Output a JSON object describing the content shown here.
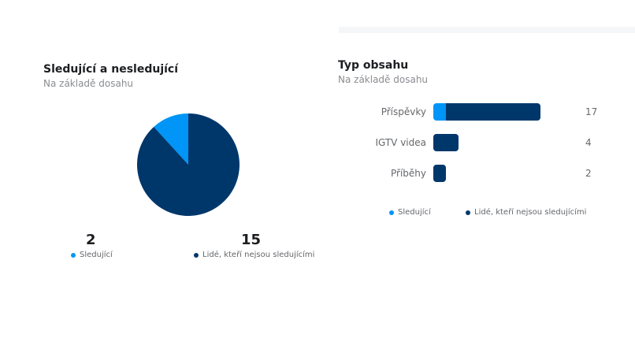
{
  "colors": {
    "followers": "#0095f6",
    "non_followers": "#00376b"
  },
  "left": {
    "title": "Sledující a nesledující",
    "subtitle": "Na základě dosahu",
    "followers_count": "2",
    "non_followers_count": "15",
    "legend_followers": "Sledující",
    "legend_non_followers": "Lidé, kteří nejsou sledujícími"
  },
  "right": {
    "title": "Typ obsahu",
    "subtitle": "Na základě dosahu",
    "legend_followers": "Sledující",
    "legend_non_followers": "Lidé, kteří nejsou sledujícími"
  },
  "chart_data": [
    {
      "type": "pie",
      "categories": [
        "Sledující",
        "Lidé, kteří nejsou sledujícími"
      ],
      "values": [
        2,
        15
      ]
    },
    {
      "type": "bar",
      "orientation": "horizontal",
      "stacked": true,
      "categories": [
        "Příspěvky",
        "IGTV videa",
        "Příběhy"
      ],
      "totals": [
        "17",
        "4",
        "2"
      ],
      "series": [
        {
          "name": "Sledující",
          "values": [
            2,
            0,
            0
          ]
        },
        {
          "name": "Lidé, kteří nejsou sledujícími",
          "values": [
            15,
            4,
            2
          ]
        }
      ],
      "legend": "bottom"
    }
  ]
}
